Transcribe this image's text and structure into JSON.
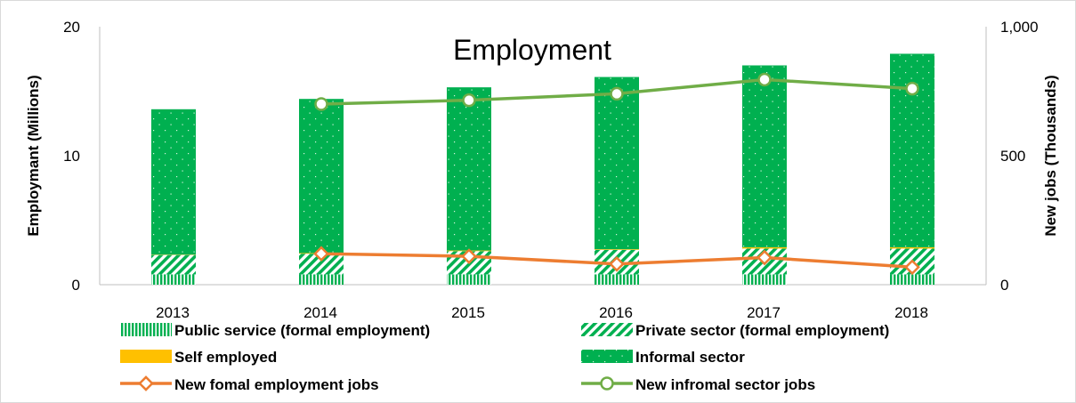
{
  "chart_data": {
    "type": "bar",
    "title": "Employment",
    "ylabel": "Employmant (Millions)",
    "y2label": "New jobs (Thousands)",
    "ylim": [
      0,
      20
    ],
    "y2lim": [
      0,
      1000
    ],
    "yticks": [
      "0",
      "10",
      "20"
    ],
    "y2ticks": [
      "0",
      "500",
      "1,000"
    ],
    "categories": [
      "2013",
      "2014",
      "2015",
      "2016",
      "2017",
      "2018"
    ],
    "stacked_series": [
      {
        "name": "Public service (formal employment)",
        "pattern": "vertical-stripes",
        "color": "#00b050",
        "values": [
          0.8,
          0.8,
          0.8,
          0.8,
          0.8,
          0.8
        ]
      },
      {
        "name": "Private sector (formal employment)",
        "pattern": "diagonal-stripes",
        "color": "#00b050",
        "values": [
          1.5,
          1.6,
          1.8,
          1.9,
          2.0,
          2.0
        ]
      },
      {
        "name": "Self employed",
        "pattern": "solid",
        "color": "#ffc000",
        "values": [
          0.03,
          0.05,
          0.05,
          0.05,
          0.1,
          0.1
        ]
      },
      {
        "name": "Informal sector",
        "pattern": "dots",
        "color": "#00b050",
        "values": [
          11.27,
          11.95,
          12.65,
          13.35,
          14.1,
          15.0
        ]
      }
    ],
    "line_series": [
      {
        "name": "New fomal employment jobs",
        "axis": "right",
        "color": "#ed7d31",
        "marker": "diamond",
        "values": [
          null,
          120,
          110,
          80,
          105,
          68
        ]
      },
      {
        "name": "New infromal sector jobs",
        "axis": "right",
        "color": "#70ad47",
        "marker": "circle",
        "values": [
          null,
          700,
          715,
          740,
          795,
          760
        ]
      }
    ],
    "legend_position": "bottom",
    "grid": false
  }
}
